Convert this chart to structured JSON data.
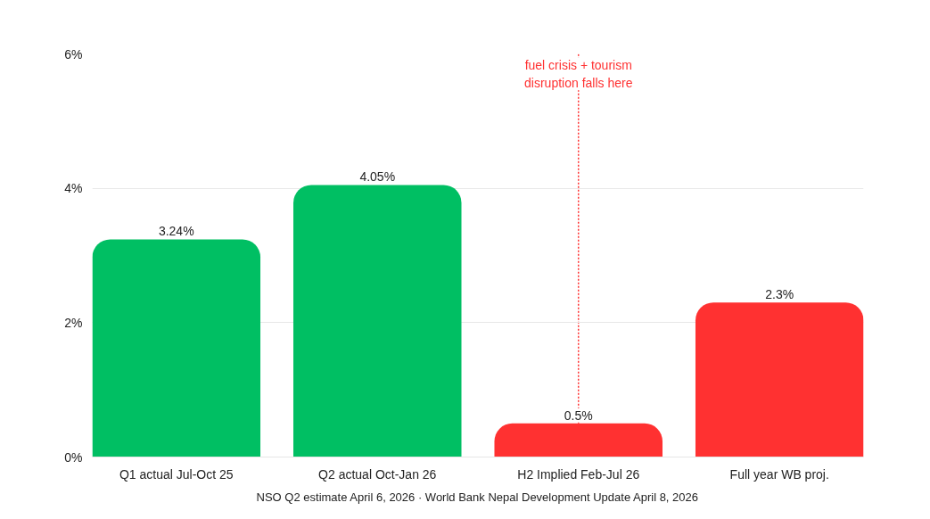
{
  "chart_data": {
    "type": "bar",
    "categories": [
      "Q1 actual Jul-Oct 25",
      "Q2 actual Oct-Jan 26",
      "H2 Implied Feb-Jul 26",
      "Full year WB proj."
    ],
    "values": [
      3.24,
      4.05,
      0.5,
      2.3
    ],
    "colors": [
      "#00bf63",
      "#00bf63",
      "#ff3131",
      "#ff3131"
    ],
    "value_labels": [
      "3.24%",
      "4.05%",
      "0.5%",
      "2.3%"
    ],
    "ylim": [
      0,
      6
    ],
    "yticks": [
      {
        "value": 0,
        "label": "0%"
      },
      {
        "value": 2,
        "label": "2%"
      },
      {
        "value": 4,
        "label": "4%"
      },
      {
        "value": 6,
        "label": "6%"
      }
    ],
    "grid": "y",
    "annotations": [
      {
        "text": "fuel crisis + tourism\ndisruption falls here",
        "x": "H2 Implied Feb-Jul 26",
        "y": 0.5
      },
      "NSO Q2 estimate April 6, 2026 · World Bank Nepal Development Update April 8, 2026"
    ]
  }
}
